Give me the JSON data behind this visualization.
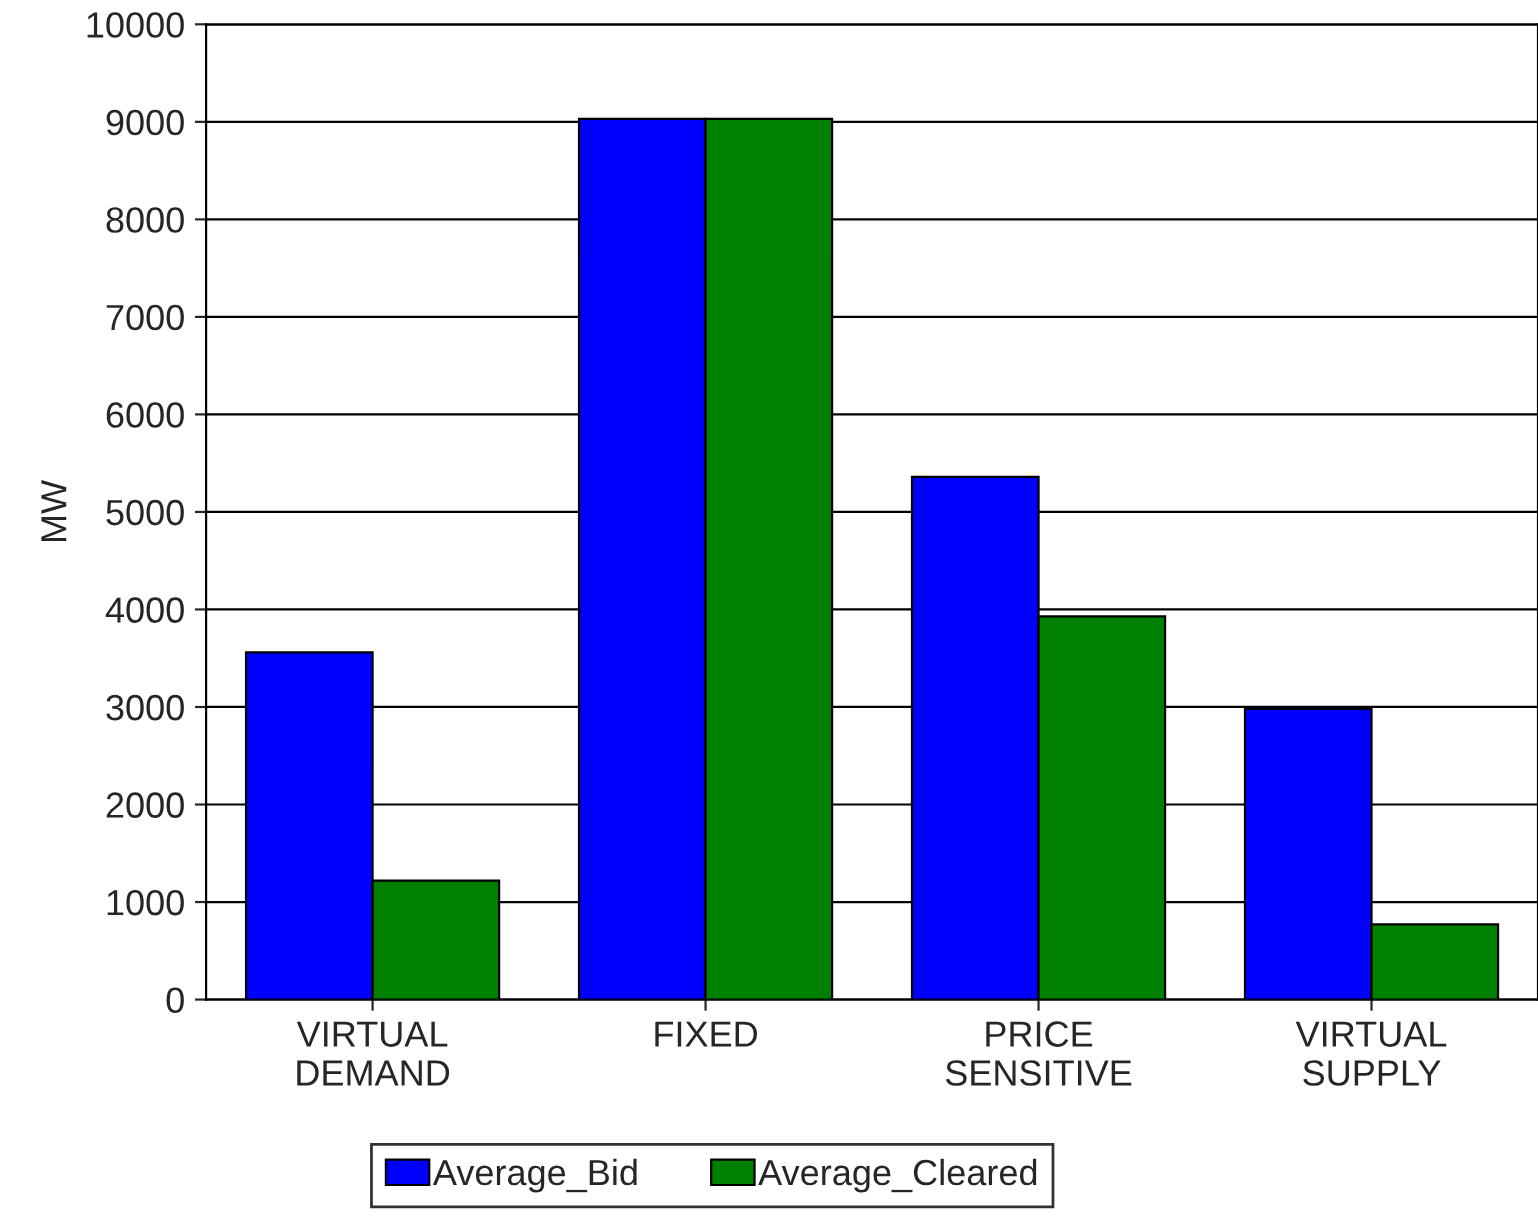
{
  "chart_data": {
    "type": "bar",
    "ylabel": "MW",
    "categories": [
      "VIRTUAL\nDEMAND",
      "FIXED",
      "PRICE\nSENSITIVE",
      "VIRTUAL\nSUPPLY"
    ],
    "series": [
      {
        "name": "Average_Bid",
        "color": "#0000ff",
        "values": [
          3560,
          9030,
          5360,
          2980
        ]
      },
      {
        "name": "Average_Cleared",
        "color": "#008000",
        "values": [
          1220,
          9030,
          3930,
          770
        ]
      }
    ],
    "ylim": [
      0,
      10000
    ],
    "yticks": [
      0,
      1000,
      2000,
      3000,
      4000,
      5000,
      6000,
      7000,
      8000,
      9000,
      10000
    ],
    "grid": "y",
    "legend": "bottom"
  }
}
